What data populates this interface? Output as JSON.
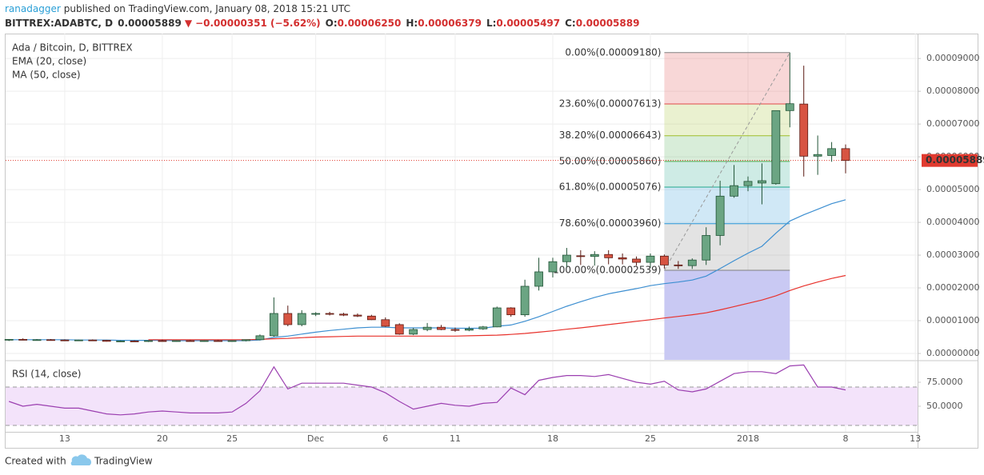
{
  "header": {
    "author": "ranadagger",
    "published": "published on TradingView.com, January 08, 2018 15:21 UTC",
    "symbol": "BITTREX:ADABTC, D",
    "last": "0.00005889",
    "arrow": "▼",
    "change": "−0.00000351 (−5.62%)",
    "ohlc": [
      {
        "label": "O:",
        "value": "0.00006250"
      },
      {
        "label": "H:",
        "value": "0.00006379"
      },
      {
        "label": "L:",
        "value": "0.00005497"
      },
      {
        "label": "C:",
        "value": "0.00005889"
      }
    ]
  },
  "chart_data": {
    "type": "candlestick",
    "title": "Ada / Bitcoin, D, BITTREX",
    "categories": [
      null,
      null,
      null,
      null,
      "13",
      null,
      null,
      null,
      null,
      null,
      null,
      "20",
      null,
      null,
      null,
      null,
      "25",
      null,
      null,
      null,
      null,
      null,
      "Dec",
      null,
      null,
      null,
      null,
      "6",
      null,
      null,
      null,
      null,
      "11",
      null,
      null,
      null,
      null,
      null,
      null,
      "18",
      null,
      null,
      null,
      null,
      null,
      null,
      "25",
      null,
      null,
      null,
      null,
      null,
      null,
      "2018",
      null,
      null,
      null,
      null,
      null,
      null,
      "8",
      null,
      null,
      null,
      null,
      "13"
    ],
    "ohlc": {
      "up_color": "#6ba583",
      "down_color": "#d75442",
      "open": [
        4.1e-06,
        4.3e-06,
        4.1e-06,
        4.2e-06,
        4.1e-06,
        4e-06,
        4.1e-06,
        4e-06,
        3.7e-06,
        3.8e-06,
        3.7e-06,
        3.9e-06,
        3.8e-06,
        3.9e-06,
        3.8e-06,
        3.9e-06,
        3.8e-06,
        3.9e-06,
        4.2e-06,
        5.4e-06,
        1.22e-05,
        8.8e-06,
        1.2e-05,
        1.22e-05,
        1.2e-05,
        1.17e-05,
        1.14e-05,
        1.03e-05,
        8.8e-06,
        5.9e-06,
        7.3e-06,
        8e-06,
        7.3e-06,
        7.1e-06,
        7.5e-06,
        8.1e-06,
        1.39e-05,
        1.18e-05,
        2.05e-05,
        2.49e-05,
        2.8e-05,
        2.98e-05,
        2.96e-05,
        3.02e-05,
        2.92e-05,
        2.88e-05,
        2.78e-05,
        2.97e-05,
        2.7e-05,
        2.68e-05,
        2.85e-05,
        3.6e-05,
        4.8e-05,
        5.12e-05,
        5.2e-05,
        5.18e-05,
        7.41e-05,
        7.61e-05,
        6.02e-05,
        6.04e-05,
        6.25e-05,
        null,
        null,
        null,
        null,
        null
      ],
      "high": [
        4.4e-06,
        4.6e-06,
        4.4e-06,
        4.4e-06,
        4.3e-06,
        4.2e-06,
        4.3e-06,
        4.1e-06,
        4e-06,
        4e-06,
        4e-06,
        4.2e-06,
        4e-06,
        4.1e-06,
        4e-06,
        4.1e-06,
        4e-06,
        4.3e-06,
        5.8e-06,
        1.71e-05,
        1.46e-05,
        1.32e-05,
        1.26e-05,
        1.27e-05,
        1.24e-05,
        1.22e-05,
        1.18e-05,
        1.1e-05,
        9.2e-06,
        7.8e-06,
        9.3e-06,
        8.7e-06,
        7.9e-06,
        8.2e-06,
        8.4e-06,
        1.43e-05,
        1.41e-05,
        2.25e-05,
        2.92e-05,
        2.92e-05,
        3.22e-05,
        3.15e-05,
        3.12e-05,
        3.15e-05,
        3.05e-05,
        2.96e-05,
        3.05e-05,
        3.02e-05,
        2.82e-05,
        2.9e-05,
        3.85e-05,
        5.27e-05,
        5.75e-05,
        5.4e-05,
        5.8e-05,
        7.41e-05,
        9.18e-05,
        8.78e-05,
        6.65e-05,
        6.45e-05,
        6.379e-05,
        null,
        null,
        null,
        null,
        null
      ],
      "low": [
        3.8e-06,
        4e-06,
        3.9e-06,
        3.9e-06,
        3.9e-06,
        3.8e-06,
        3.8e-06,
        3.6e-06,
        3.5e-06,
        3.6e-06,
        3.5e-06,
        3.7e-06,
        3.6e-06,
        3.7e-06,
        3.6e-06,
        3.7e-06,
        3.6e-06,
        3.7e-06,
        4e-06,
        5.1e-06,
        8.3e-06,
        8.3e-06,
        1.14e-05,
        1.16e-05,
        1.14e-05,
        1.11e-05,
        1.02e-05,
        8.1e-06,
        5.7e-06,
        5.6e-06,
        6.8e-06,
        7.1e-06,
        6.6e-06,
        6.8e-06,
        7.2e-06,
        8e-06,
        1.12e-05,
        1.12e-05,
        1.92e-05,
        2.32e-05,
        2.63e-05,
        2.7e-05,
        2.68e-05,
        2.72e-05,
        2.72e-05,
        2.68e-05,
        2.62e-05,
        2.59e-05,
        2.58e-05,
        2.58e-05,
        2.7e-05,
        3.3e-05,
        4.75e-05,
        4.95e-05,
        4.55e-05,
        5.15e-05,
        6.9e-05,
        5.4e-05,
        5.45e-05,
        5.85e-05,
        5.497e-05,
        null,
        null,
        null,
        null,
        null
      ],
      "close": [
        4.3e-06,
        4.1e-06,
        4.2e-06,
        4.1e-06,
        4e-06,
        4.1e-06,
        4e-06,
        3.7e-06,
        3.8e-06,
        3.7e-06,
        3.9e-06,
        3.8e-06,
        3.9e-06,
        3.8e-06,
        3.9e-06,
        3.8e-06,
        3.9e-06,
        4.2e-06,
        5.4e-06,
        1.22e-05,
        8.8e-06,
        1.22e-05,
        1.22e-05,
        1.2e-05,
        1.17e-05,
        1.14e-05,
        1.03e-05,
        8.3e-06,
        5.9e-06,
        7.3e-06,
        8e-06,
        7.3e-06,
        7.1e-06,
        7.5e-06,
        8.1e-06,
        1.39e-05,
        1.18e-05,
        2.05e-05,
        2.49e-05,
        2.8e-05,
        3e-05,
        2.96e-05,
        3.02e-05,
        2.92e-05,
        2.88e-05,
        2.78e-05,
        2.97e-05,
        2.7e-05,
        2.68e-05,
        2.85e-05,
        3.6e-05,
        4.8e-05,
        5.12e-05,
        5.25e-05,
        5.27e-05,
        7.41e-05,
        7.62e-05,
        6.02e-05,
        6.07e-05,
        6.25e-05,
        5.889e-05,
        null,
        null,
        null,
        null,
        null
      ]
    },
    "series": [
      {
        "name": "EMA (20, close)",
        "color": "#3d8fd1",
        "values": [
          4.2e-06,
          4.2e-06,
          4.2e-06,
          4.2e-06,
          4.2e-06,
          4.1e-06,
          4.1e-06,
          4.1e-06,
          4e-06,
          4e-06,
          4e-06,
          4e-06,
          3.9e-06,
          3.9e-06,
          3.9e-06,
          3.9e-06,
          3.9e-06,
          3.9e-06,
          4.1e-06,
          4.9e-06,
          5.3e-06,
          5.9e-06,
          6.5e-06,
          7e-06,
          7.4e-06,
          7.8e-06,
          8e-06,
          8e-06,
          7.8e-06,
          7.8e-06,
          7.8e-06,
          7.8e-06,
          7.7e-06,
          7.7e-06,
          7.7e-06,
          8.3e-06,
          8.7e-06,
          9.8e-06,
          1.12e-05,
          1.28e-05,
          1.44e-05,
          1.58e-05,
          1.71e-05,
          1.82e-05,
          1.9e-05,
          1.98e-05,
          2.07e-05,
          2.13e-05,
          2.18e-05,
          2.24e-05,
          2.36e-05,
          2.59e-05,
          2.83e-05,
          3.06e-05,
          3.27e-05,
          3.67e-05,
          4.04e-05,
          4.23e-05,
          4.4e-05,
          4.57e-05,
          4.69e-05,
          null,
          null,
          null,
          null,
          null
        ]
      },
      {
        "name": "MA (50, close)",
        "color": "#e8322c",
        "values": [
          null,
          null,
          null,
          null,
          null,
          null,
          null,
          null,
          null,
          null,
          4.2e-06,
          4.2e-06,
          4.2e-06,
          4.2e-06,
          4.2e-06,
          4.2e-06,
          4.2e-06,
          4.2e-06,
          4.3e-06,
          4.5e-06,
          4.6e-06,
          4.8e-06,
          5e-06,
          5.1e-06,
          5.2e-06,
          5.3e-06,
          5.3e-06,
          5.3e-06,
          5.3e-06,
          5.3e-06,
          5.3e-06,
          5.3e-06,
          5.3e-06,
          5.4e-06,
          5.5e-06,
          5.6e-06,
          5.8e-06,
          6.1e-06,
          6.5e-06,
          6.9e-06,
          7.4e-06,
          7.8e-06,
          8.3e-06,
          8.8e-06,
          9.3e-06,
          9.8e-06,
          1.03e-05,
          1.08e-05,
          1.13e-05,
          1.18e-05,
          1.24e-05,
          1.33e-05,
          1.43e-05,
          1.53e-05,
          1.63e-05,
          1.76e-05,
          1.92e-05,
          2.06e-05,
          2.18e-05,
          2.29e-05,
          2.38e-05,
          null,
          null,
          null,
          null,
          null
        ]
      }
    ],
    "ylim": [
      -1.95e-06,
      9.76e-05
    ],
    "yticks": [
      {
        "value": 0,
        "label": "0.00000000"
      },
      {
        "value": 1e-05,
        "label": "0.00001000"
      },
      {
        "value": 2e-05,
        "label": "0.00002000"
      },
      {
        "value": 3e-05,
        "label": "0.00003000"
      },
      {
        "value": 4e-05,
        "label": "0.00004000"
      },
      {
        "value": 5e-05,
        "label": "0.00005000"
      },
      {
        "value": 6e-05,
        "label": "0.00006000"
      },
      {
        "value": 7e-05,
        "label": "0.00007000"
      },
      {
        "value": 8e-05,
        "label": "0.00008000"
      },
      {
        "value": 9e-05,
        "label": "0.00009000"
      }
    ],
    "grid": true,
    "last_price": {
      "value": 5.889e-05,
      "label": "0.00005889",
      "color": "#e03a2f"
    },
    "fibonacci": [
      {
        "label": "0.00%(0.00009180)",
        "value": 9.18e-05,
        "color": "#808080"
      },
      {
        "label": "23.60%(0.00007613)",
        "value": 7.613e-05,
        "color": "#e04848"
      },
      {
        "label": "38.20%(0.00006643)",
        "value": 6.643e-05,
        "color": "#9fbd2a"
      },
      {
        "label": "50.00%(0.00005860)",
        "value": 5.86e-05,
        "color": "#4caf50"
      },
      {
        "label": "61.80%(0.00005076)",
        "value": 5.076e-05,
        "color": "#1fa68a"
      },
      {
        "label": "78.60%(0.00003960)",
        "value": 3.96e-05,
        "color": "#2b95d6"
      },
      {
        "label": "100.00%(0.00002539)",
        "value": 2.539e-05,
        "color": "#808080"
      }
    ],
    "rsi": {
      "name": "RSI (14, close)",
      "color": "#9b3fb0",
      "band": [
        30,
        70
      ],
      "ylim": [
        23.3,
        96.7
      ],
      "yticks": [
        {
          "value": 50,
          "label": "50.0000"
        },
        {
          "value": 75,
          "label": "75.0000"
        }
      ],
      "values": [
        55,
        50,
        52,
        50,
        48,
        48,
        45,
        42,
        41,
        42,
        44,
        45,
        44,
        43,
        43,
        43,
        44,
        53,
        66,
        91,
        68,
        74,
        74,
        74,
        74,
        72,
        70,
        64,
        55,
        47,
        50,
        53,
        51,
        50,
        53,
        54,
        69,
        62,
        77,
        80,
        82,
        82,
        81,
        83,
        79,
        75,
        73,
        76,
        67,
        65,
        68,
        76,
        84,
        86,
        86,
        84,
        92,
        93,
        70,
        70,
        67,
        null,
        null,
        null,
        null,
        null
      ]
    }
  },
  "footer": {
    "created": "Created with",
    "brand": "TradingView"
  }
}
